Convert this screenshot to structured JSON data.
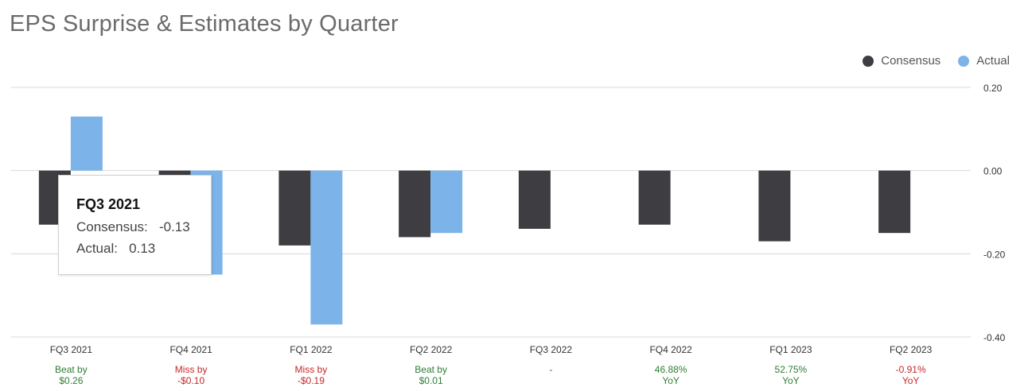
{
  "title": "EPS Surprise & Estimates by Quarter",
  "legend": [
    {
      "label": "Consensus",
      "color": "#3e3d42"
    },
    {
      "label": "Actual",
      "color": "#7cb4ea"
    }
  ],
  "tooltip": {
    "title": "FQ3 2021",
    "consensus_label": "Consensus:",
    "consensus_value": "-0.13",
    "actual_label": "Actual:",
    "actual_value": "0.13"
  },
  "chart_data": {
    "type": "bar",
    "title": "EPS Surprise & Estimates by Quarter",
    "categories": [
      "FQ3 2021",
      "FQ4 2021",
      "FQ1 2022",
      "FQ2 2022",
      "FQ3 2022",
      "FQ4 2022",
      "FQ1 2023",
      "FQ2 2023"
    ],
    "series": [
      {
        "name": "Consensus",
        "color": "#3e3d42",
        "values": [
          -0.13,
          -0.15,
          -0.18,
          -0.16,
          -0.14,
          -0.13,
          -0.17,
          -0.15
        ]
      },
      {
        "name": "Actual",
        "color": "#7cb4ea",
        "values": [
          0.13,
          -0.25,
          -0.37,
          -0.15,
          null,
          null,
          null,
          null
        ]
      }
    ],
    "yticks": [
      "0.20",
      "0.00",
      "-0.20",
      "-0.40"
    ],
    "ylim": [
      -0.4,
      0.2
    ],
    "grid": true,
    "legend_position": "top-right",
    "surprise": [
      {
        "line1": "Beat by",
        "line2": "$0.26",
        "color": "#2e7d32"
      },
      {
        "line1": "Miss by",
        "line2": "-$0.10",
        "color": "#c62828"
      },
      {
        "line1": "Miss by",
        "line2": "-$0.19",
        "color": "#c62828"
      },
      {
        "line1": "Beat by",
        "line2": "$0.01",
        "color": "#2e7d32"
      },
      {
        "line1": "-",
        "line2": "",
        "color": "#555555"
      },
      {
        "line1": "46.88%",
        "line2": "YoY",
        "color": "#2e7d32"
      },
      {
        "line1": "52.75%",
        "line2": "YoY",
        "color": "#2e7d32"
      },
      {
        "line1": "-0.91%",
        "line2": "YoY",
        "color": "#c62828"
      }
    ]
  }
}
